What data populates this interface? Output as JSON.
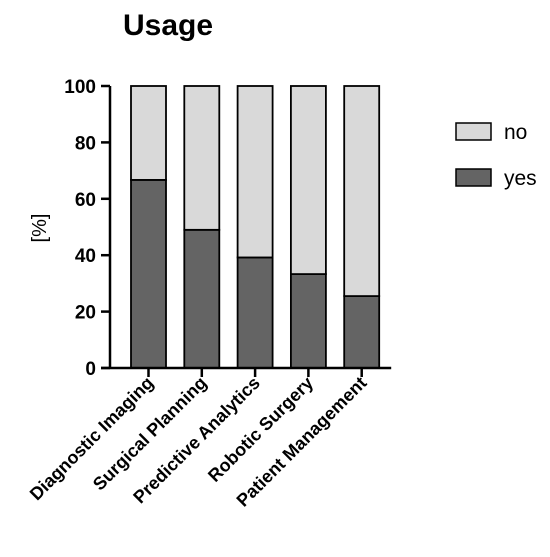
{
  "chart_data": {
    "type": "bar",
    "stacked": true,
    "title": "Usage",
    "xlabel": "",
    "ylabel": "[%]",
    "ylim": [
      0,
      100
    ],
    "yticks": [
      "0",
      "20",
      "40",
      "60",
      "80",
      "100"
    ],
    "categories": [
      "Diagnostic Imaging",
      "Surgical Planning",
      "Predictive Analytics",
      "Robotic Surgery",
      "Patient Management"
    ],
    "series": [
      {
        "name": "yes",
        "values": [
          66.7,
          49,
          39.2,
          33.3,
          25.5
        ],
        "color": "#646464"
      },
      {
        "name": "no",
        "values": [
          33.3,
          51,
          60.8,
          66.7,
          74.5
        ],
        "color": "#d9d9d9"
      }
    ],
    "legend": {
      "position": "right",
      "order": [
        "no",
        "yes"
      ]
    },
    "grid": false
  }
}
